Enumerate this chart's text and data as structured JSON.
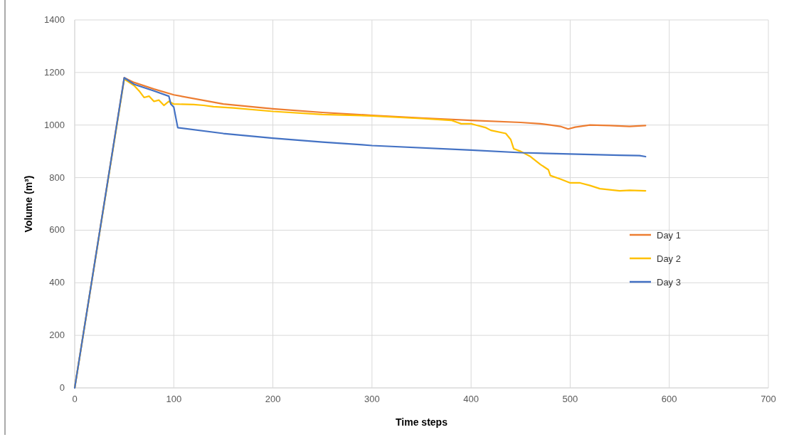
{
  "chart_data": {
    "type": "line",
    "xlabel": "Time steps",
    "ylabel": "Volume (m³)",
    "xlim": [
      0,
      700
    ],
    "xticks": [
      0,
      100,
      200,
      300,
      400,
      500,
      600,
      700
    ],
    "ylim": [
      0,
      1400
    ],
    "yticks": [
      0,
      200,
      400,
      600,
      800,
      1000,
      1200,
      1400
    ],
    "grid": true,
    "legend": "right",
    "marker": "none",
    "line_style": "solid",
    "series": [
      {
        "name": "Day 1",
        "color": "#ed7d31",
        "x": [
          0,
          50,
          60,
          80,
          100,
          150,
          200,
          250,
          300,
          350,
          400,
          450,
          470,
          480,
          490,
          498,
          505,
          520,
          540,
          560,
          576
        ],
        "values": [
          0,
          1180,
          1162,
          1137,
          1115,
          1080,
          1062,
          1048,
          1037,
          1027,
          1018,
          1010,
          1005,
          1000,
          995,
          985,
          992,
          1000,
          998,
          995,
          998
        ]
      },
      {
        "name": "Day 2",
        "color": "#ffc000",
        "x": [
          0,
          50,
          60,
          65,
          70,
          75,
          80,
          85,
          90,
          95,
          100,
          120,
          130,
          140,
          160,
          200,
          250,
          300,
          350,
          380,
          390,
          400,
          405,
          415,
          420,
          435,
          440,
          443,
          450,
          460,
          470,
          478,
          480,
          490,
          500,
          510,
          520,
          530,
          550,
          560,
          576
        ],
        "values": [
          0,
          1175,
          1150,
          1130,
          1105,
          1110,
          1090,
          1095,
          1075,
          1090,
          1080,
          1078,
          1075,
          1070,
          1065,
          1052,
          1040,
          1035,
          1025,
          1018,
          1005,
          1005,
          1000,
          990,
          980,
          968,
          945,
          910,
          900,
          880,
          850,
          830,
          808,
          795,
          780,
          780,
          770,
          758,
          750,
          752,
          750
        ]
      },
      {
        "name": "Day 3",
        "color": "#4472c4",
        "x": [
          0,
          50,
          60,
          80,
          95,
          97,
          100,
          104,
          150,
          200,
          250,
          290,
          300,
          400,
          450,
          500,
          550,
          570,
          576
        ],
        "values": [
          0,
          1180,
          1155,
          1130,
          1110,
          1080,
          1068,
          990,
          968,
          950,
          935,
          925,
          922,
          905,
          895,
          890,
          885,
          884,
          880
        ]
      }
    ]
  }
}
